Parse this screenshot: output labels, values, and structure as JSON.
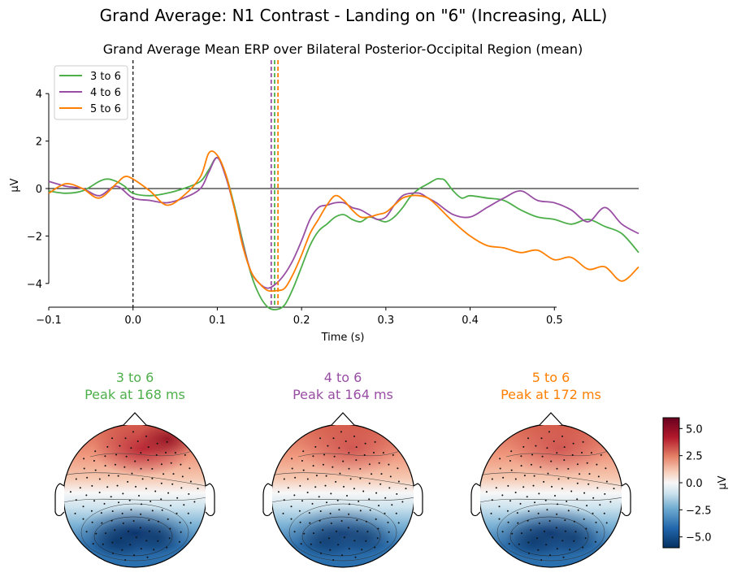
{
  "figure": {
    "suptitle": "Grand Average: N1 Contrast - Landing on \"6\" (Increasing, ALL)"
  },
  "chart_data": [
    {
      "type": "line",
      "title": "Grand Average Mean ERP over Bilateral Posterior-Occipital Region (mean)",
      "xlabel": "Time (s)",
      "ylabel": "µV",
      "xlim": [
        -0.1,
        0.6
      ],
      "ylim": [
        -5,
        5
      ],
      "x_ticks": [
        -0.1,
        0.0,
        0.1,
        0.2,
        0.3,
        0.4,
        0.5
      ],
      "x_tick_labels": [
        "−0.1",
        "0.0",
        "0.1",
        "0.2",
        "0.3",
        "0.4",
        "0.5"
      ],
      "y_ticks": [
        -4,
        -2,
        0,
        2,
        4
      ],
      "y_tick_labels": [
        "−4",
        "−2",
        "0",
        "2",
        "4"
      ],
      "zero_line": true,
      "stimulus_onset_line": 0.0,
      "legend_position": "top-left",
      "series": [
        {
          "name": "3 to 6",
          "color": "#4daf4a",
          "peak_time": 0.168,
          "x": [
            -0.1,
            -0.08,
            -0.06,
            -0.04,
            -0.03,
            -0.02,
            -0.01,
            0.0,
            0.02,
            0.04,
            0.06,
            0.08,
            0.09,
            0.1,
            0.11,
            0.12,
            0.13,
            0.14,
            0.15,
            0.16,
            0.17,
            0.18,
            0.19,
            0.2,
            0.21,
            0.22,
            0.23,
            0.24,
            0.25,
            0.26,
            0.27,
            0.28,
            0.29,
            0.3,
            0.31,
            0.32,
            0.33,
            0.34,
            0.35,
            0.36,
            0.365,
            0.37,
            0.38,
            0.39,
            0.4,
            0.42,
            0.44,
            0.46,
            0.48,
            0.5,
            0.52,
            0.54,
            0.56,
            0.58,
            0.6
          ],
          "y": [
            -0.1,
            -0.2,
            -0.1,
            0.3,
            0.4,
            0.3,
            0.1,
            -0.2,
            -0.3,
            -0.2,
            0.0,
            0.3,
            0.8,
            1.3,
            0.6,
            -0.7,
            -2.2,
            -3.6,
            -4.5,
            -5.0,
            -5.1,
            -4.9,
            -4.2,
            -3.3,
            -2.4,
            -1.8,
            -1.5,
            -1.2,
            -1.1,
            -1.3,
            -1.4,
            -1.2,
            -1.3,
            -1.4,
            -1.2,
            -0.8,
            -0.3,
            0.0,
            0.2,
            0.4,
            0.4,
            0.35,
            -0.1,
            -0.4,
            -0.3,
            -0.4,
            -0.5,
            -0.9,
            -1.2,
            -1.3,
            -1.5,
            -1.3,
            -1.6,
            -1.9,
            -2.7
          ]
        },
        {
          "name": "4 to 6",
          "color": "#984ea3",
          "peak_time": 0.164,
          "x": [
            -0.1,
            -0.08,
            -0.06,
            -0.04,
            -0.02,
            0.0,
            0.02,
            0.04,
            0.06,
            0.08,
            0.09,
            0.1,
            0.11,
            0.12,
            0.13,
            0.14,
            0.15,
            0.16,
            0.17,
            0.18,
            0.19,
            0.2,
            0.21,
            0.22,
            0.23,
            0.24,
            0.25,
            0.26,
            0.27,
            0.28,
            0.29,
            0.3,
            0.31,
            0.32,
            0.33,
            0.34,
            0.35,
            0.36,
            0.38,
            0.4,
            0.42,
            0.44,
            0.46,
            0.48,
            0.5,
            0.52,
            0.54,
            0.56,
            0.58,
            0.6
          ],
          "y": [
            0.3,
            0.1,
            0.0,
            -0.3,
            0.1,
            -0.4,
            -0.5,
            -0.6,
            -0.4,
            0.0,
            0.7,
            1.3,
            0.5,
            -0.8,
            -2.3,
            -3.5,
            -4.0,
            -4.2,
            -4.0,
            -3.6,
            -3.0,
            -2.2,
            -1.3,
            -0.8,
            -0.7,
            -0.6,
            -0.6,
            -0.8,
            -0.9,
            -1.1,
            -1.3,
            -1.2,
            -0.7,
            -0.3,
            -0.2,
            -0.2,
            -0.4,
            -0.6,
            -1.1,
            -1.2,
            -0.8,
            -0.4,
            -0.1,
            -0.5,
            -0.6,
            -0.9,
            -1.4,
            -0.8,
            -1.5,
            -1.9
          ]
        },
        {
          "name": "5 to 6",
          "color": "#ff7f00",
          "peak_time": 0.172,
          "x": [
            -0.1,
            -0.08,
            -0.06,
            -0.04,
            -0.02,
            -0.01,
            0.0,
            0.02,
            0.04,
            0.06,
            0.08,
            0.09,
            0.1,
            0.11,
            0.12,
            0.13,
            0.14,
            0.15,
            0.16,
            0.17,
            0.18,
            0.19,
            0.2,
            0.21,
            0.22,
            0.23,
            0.24,
            0.25,
            0.26,
            0.27,
            0.28,
            0.29,
            0.3,
            0.31,
            0.32,
            0.33,
            0.34,
            0.35,
            0.36,
            0.38,
            0.4,
            0.42,
            0.44,
            0.46,
            0.48,
            0.5,
            0.52,
            0.54,
            0.56,
            0.58,
            0.6
          ],
          "y": [
            -0.2,
            0.2,
            0.0,
            -0.4,
            0.2,
            0.5,
            0.4,
            -0.1,
            -0.7,
            -0.3,
            0.5,
            1.5,
            1.4,
            0.6,
            -0.8,
            -2.4,
            -3.5,
            -4.0,
            -4.3,
            -4.3,
            -4.2,
            -3.6,
            -2.8,
            -1.9,
            -1.3,
            -0.7,
            -0.3,
            -0.5,
            -0.9,
            -1.2,
            -1.2,
            -1.1,
            -1.0,
            -0.7,
            -0.4,
            -0.3,
            -0.3,
            -0.4,
            -0.7,
            -1.4,
            -2.0,
            -2.4,
            -2.5,
            -2.7,
            -2.6,
            -3.0,
            -2.9,
            -3.4,
            -3.3,
            -3.9,
            -3.3
          ]
        }
      ]
    },
    {
      "type": "heatmap",
      "colorbar_label": "µV",
      "colorbar_range": [
        -6,
        6
      ],
      "colorbar_ticks": [
        5.0,
        2.5,
        0.0,
        -2.5,
        -5.0
      ],
      "colorbar_tick_labels": [
        "5.0",
        "2.5",
        "0.0",
        "−2.5",
        "−5.0"
      ],
      "colormap": "RdBu_r",
      "topomaps": [
        {
          "title": "3 to 6",
          "subtitle": "Peak at 168 ms",
          "color": "#4daf4a"
        },
        {
          "title": "4 to 6",
          "subtitle": "Peak at 164 ms",
          "color": "#984ea3"
        },
        {
          "title": "5 to 6",
          "subtitle": "Peak at 172 ms",
          "color": "#ff7f00"
        }
      ]
    }
  ]
}
